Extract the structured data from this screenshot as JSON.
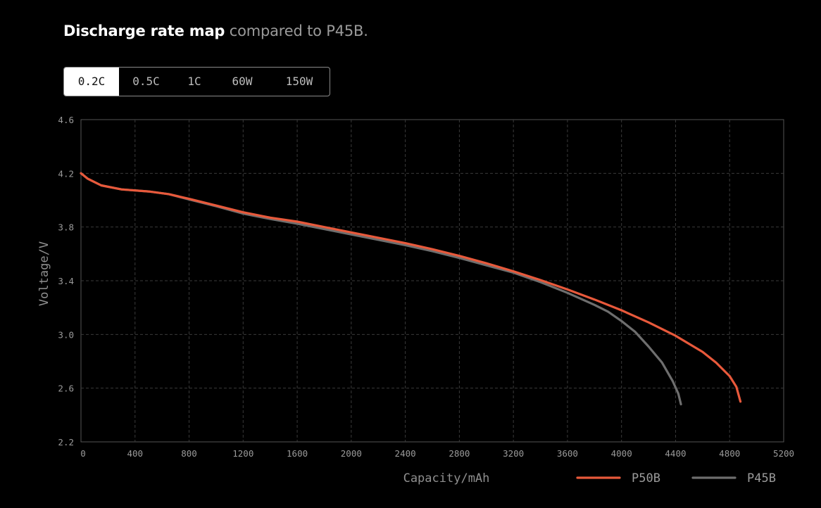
{
  "header": {
    "title_strong": "Discharge rate map",
    "title_rest": " compared to P45B."
  },
  "tabs": [
    {
      "label": "0.2C",
      "active": true
    },
    {
      "label": "0.5C",
      "active": false
    },
    {
      "label": "1C",
      "active": false
    },
    {
      "label": "60W",
      "active": false
    },
    {
      "label": "150W",
      "active": false
    }
  ],
  "colors": {
    "P50B": "#e8593b",
    "P45B": "#6e6e6e",
    "grid": "#3a3a3a",
    "frame": "#555555"
  },
  "chart_data": {
    "type": "line",
    "xlabel": "Capacity/mAh",
    "ylabel": "Voltage/V",
    "xlim": [
      0,
      5200
    ],
    "ylim": [
      2.2,
      4.6
    ],
    "xticks": [
      0,
      400,
      800,
      1200,
      1600,
      2000,
      2400,
      2800,
      3200,
      3600,
      4000,
      4400,
      4800,
      5200
    ],
    "xtick_labels": [
      "0",
      "400",
      "800",
      "1200",
      "1600",
      "2000",
      "2400",
      "2800",
      "3200",
      "3600",
      "4000",
      "4400",
      "4800",
      "5200"
    ],
    "yticks": [
      2.2,
      2.6,
      3.0,
      3.4,
      3.8,
      4.2,
      4.6
    ],
    "ytick_labels": [
      "2.2",
      "2.6",
      "3.0",
      "3.4",
      "3.8",
      "4.2",
      "4.6"
    ],
    "grid": true,
    "legend": "bottom-right",
    "series": [
      {
        "name": "P50B",
        "points": [
          [
            0,
            4.2
          ],
          [
            50,
            4.16
          ],
          [
            150,
            4.11
          ],
          [
            300,
            4.08
          ],
          [
            500,
            4.065
          ],
          [
            650,
            4.045
          ],
          [
            800,
            4.01
          ],
          [
            1000,
            3.96
          ],
          [
            1200,
            3.91
          ],
          [
            1400,
            3.87
          ],
          [
            1600,
            3.84
          ],
          [
            1800,
            3.8
          ],
          [
            2000,
            3.76
          ],
          [
            2200,
            3.72
          ],
          [
            2400,
            3.68
          ],
          [
            2600,
            3.635
          ],
          [
            2800,
            3.585
          ],
          [
            3000,
            3.53
          ],
          [
            3200,
            3.47
          ],
          [
            3400,
            3.405
          ],
          [
            3600,
            3.335
          ],
          [
            3800,
            3.26
          ],
          [
            4000,
            3.18
          ],
          [
            4200,
            3.09
          ],
          [
            4400,
            2.99
          ],
          [
            4600,
            2.87
          ],
          [
            4700,
            2.79
          ],
          [
            4800,
            2.69
          ],
          [
            4850,
            2.61
          ],
          [
            4880,
            2.5
          ]
        ]
      },
      {
        "name": "P45B",
        "points": [
          [
            0,
            4.2
          ],
          [
            50,
            4.16
          ],
          [
            150,
            4.11
          ],
          [
            300,
            4.08
          ],
          [
            500,
            4.065
          ],
          [
            650,
            4.045
          ],
          [
            800,
            4.005
          ],
          [
            1000,
            3.955
          ],
          [
            1200,
            3.9
          ],
          [
            1400,
            3.86
          ],
          [
            1600,
            3.825
          ],
          [
            1800,
            3.785
          ],
          [
            2000,
            3.745
          ],
          [
            2200,
            3.705
          ],
          [
            2400,
            3.665
          ],
          [
            2600,
            3.62
          ],
          [
            2800,
            3.57
          ],
          [
            3000,
            3.515
          ],
          [
            3200,
            3.46
          ],
          [
            3400,
            3.39
          ],
          [
            3600,
            3.31
          ],
          [
            3800,
            3.22
          ],
          [
            3900,
            3.17
          ],
          [
            4000,
            3.1
          ],
          [
            4100,
            3.02
          ],
          [
            4200,
            2.91
          ],
          [
            4300,
            2.79
          ],
          [
            4380,
            2.65
          ],
          [
            4420,
            2.56
          ],
          [
            4440,
            2.48
          ]
        ]
      }
    ]
  }
}
